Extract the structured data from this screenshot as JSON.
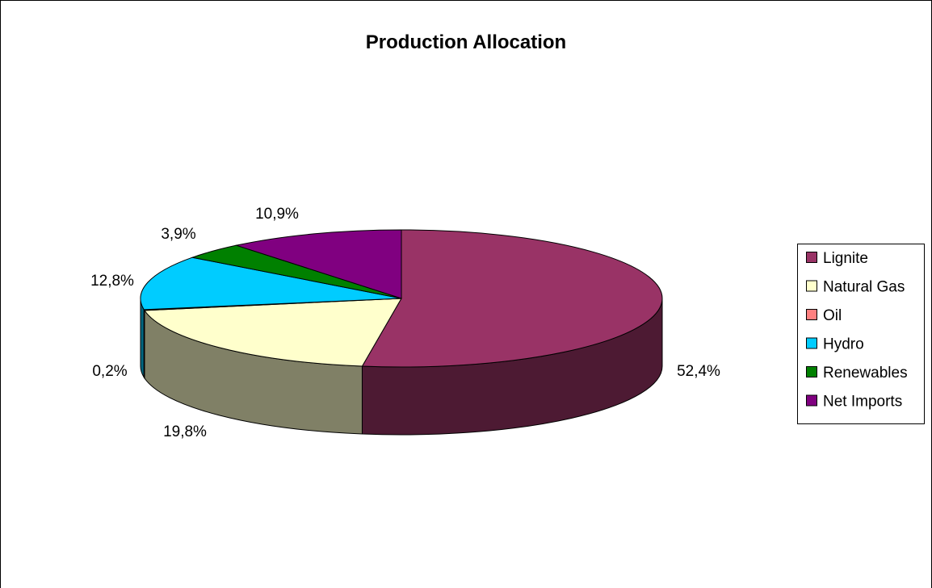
{
  "chart_data": {
    "type": "pie",
    "title": "Production Allocation",
    "style": "3d-pie",
    "start_angle_deg": 90,
    "direction": "clockwise",
    "legend_position": "right",
    "slices": [
      {
        "name": "Lignite",
        "value": 52.4,
        "label": "52,4%",
        "color": "#993366",
        "side_color": "#4D1A33"
      },
      {
        "name": "Natural Gas",
        "value": 19.8,
        "label": "19,8%",
        "color": "#FFFFCC",
        "side_color": "#808066"
      },
      {
        "name": "Oil",
        "value": 0.2,
        "label": "0,2%",
        "color": "#FF8080",
        "side_color": "#804040"
      },
      {
        "name": "Hydro",
        "value": 12.8,
        "label": "12,8%",
        "color": "#00CCFF",
        "side_color": "#006680"
      },
      {
        "name": "Renewables",
        "value": 3.9,
        "label": "3,9%",
        "color": "#008000",
        "side_color": "#004000"
      },
      {
        "name": "Net Imports",
        "value": 10.9,
        "label": "10,9%",
        "color": "#800080",
        "side_color": "#400040"
      }
    ]
  }
}
